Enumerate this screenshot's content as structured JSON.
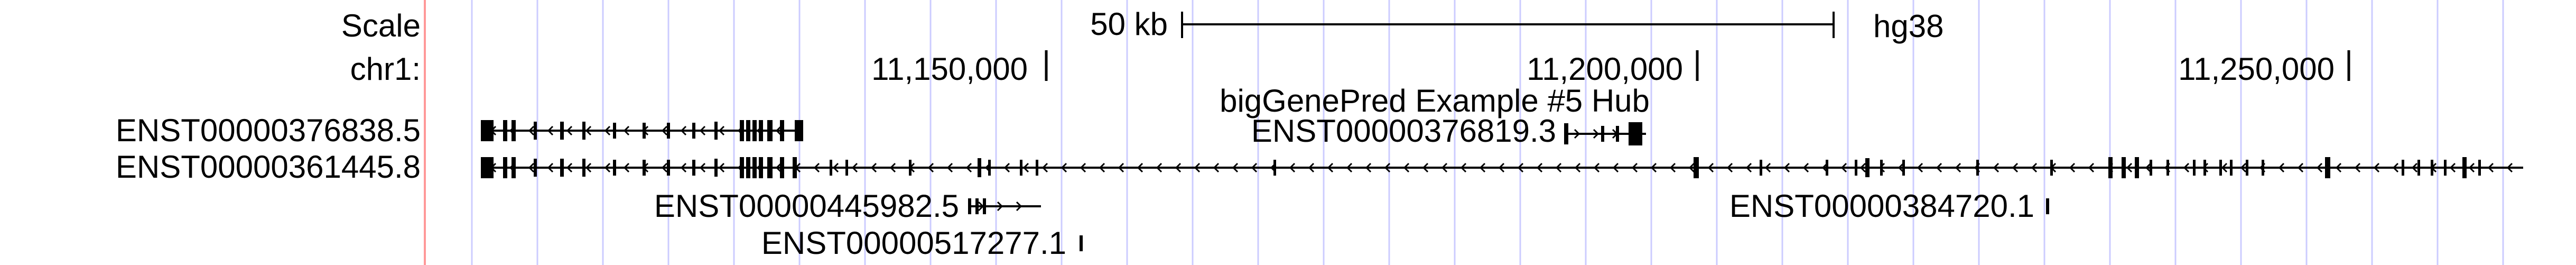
{
  "browser": {
    "genome": "hg38",
    "chromosome_label": "chr1:",
    "scale_label": "Scale",
    "scale_bar_text": "50 kb",
    "track_title": "bigGenePred Example #5 Hub",
    "ruler_ticks": [
      {
        "label": "11,150,000",
        "position": 11150000
      },
      {
        "label": "11,200,000",
        "position": 11200000
      },
      {
        "label": "11,250,000",
        "position": 11250000
      }
    ],
    "left_track_labels": [
      "ENST00000376838.5",
      "ENST00000361445.8"
    ],
    "transcripts": [
      {
        "id": "ENST00000376838.5",
        "strand": "-",
        "row": "left-1"
      },
      {
        "id": "ENST00000361445.8",
        "strand": "-",
        "row": "left-2"
      },
      {
        "id": "ENST00000376819.3",
        "strand": "+",
        "row": "inline"
      },
      {
        "id": "ENST00000445982.5",
        "strand": "+",
        "row": "inline"
      },
      {
        "id": "ENST00000517277.1",
        "strand": "+",
        "row": "inline"
      },
      {
        "id": "ENST00000384720.1",
        "strand": "+",
        "row": "inline"
      }
    ]
  },
  "colors": {
    "guide_line": "#ccccff",
    "left_border": "#ff9999",
    "feature": "#000000"
  }
}
